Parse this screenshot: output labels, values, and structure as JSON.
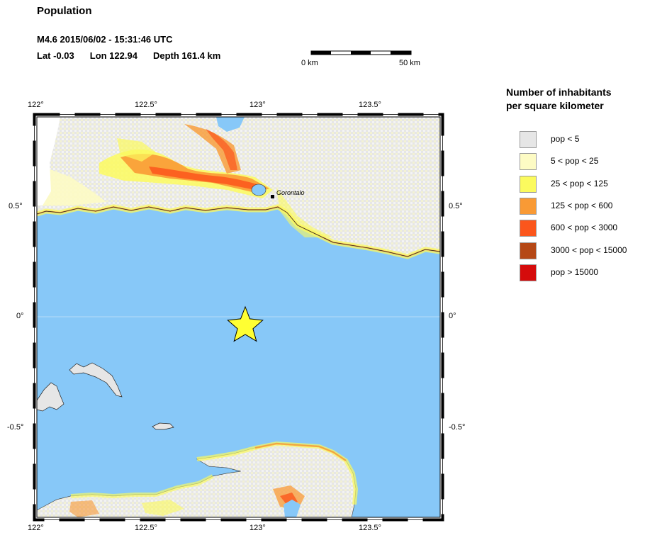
{
  "header": {
    "title": "Population",
    "event": "M4.6  2015/06/02 - 15:31:46 UTC",
    "lat": "Lat -0.03",
    "lon": "Lon 122.94",
    "depth": "Depth 161.4 km"
  },
  "scale_bar": {
    "start_label": "0 km",
    "end_label": "50 km"
  },
  "map": {
    "ticks_lon_top": [
      "122°",
      "122.5°",
      "123°",
      "123.5°"
    ],
    "ticks_lon_bottom": [
      "122°",
      "122.5°",
      "123°",
      "123.5°"
    ],
    "ticks_lat_left": [
      "0.5°",
      "0°",
      "-0.5°"
    ],
    "ticks_lat_right": [
      "0.5°",
      "0°",
      "-0.5°"
    ],
    "city_label": "Gorontalo",
    "epicenter": {
      "lat": -0.03,
      "lon": 122.94
    },
    "colors": {
      "water": "#87c8f8",
      "land_sparse": "#e6e6e6"
    }
  },
  "legend": {
    "title_line1": "Number of inhabitants",
    "title_line2": "per square kilometer",
    "items": [
      {
        "label": "pop < 5",
        "color": "#e6e6e6"
      },
      {
        "label": "5 < pop < 25",
        "color": "#fdfbc4"
      },
      {
        "label": "25 < pop < 125",
        "color": "#fbfa5e"
      },
      {
        "label": "125 < pop < 600",
        "color": "#f99a35"
      },
      {
        "label": "600 < pop < 3000",
        "color": "#fb561c"
      },
      {
        "label": "3000 < pop < 15000",
        "color": "#b54816"
      },
      {
        "label": "pop > 15000",
        "color": "#d50b0b"
      }
    ]
  }
}
